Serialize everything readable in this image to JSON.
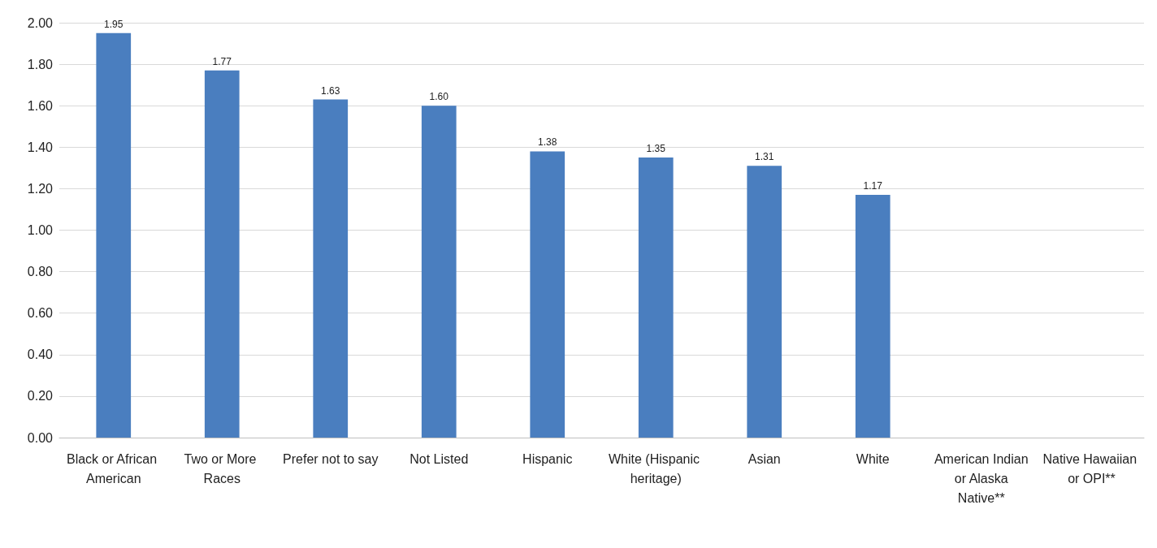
{
  "chart_data": {
    "type": "bar",
    "categories": [
      "Black or African American",
      "Two or More Races",
      "Prefer not to say",
      "Not Listed",
      "Hispanic",
      "White (Hispanic heritage)",
      "Asian",
      "White",
      "American Indian or Alaska Native**",
      "Native Hawaiian or OPI**"
    ],
    "values": [
      1.95,
      1.77,
      1.63,
      1.6,
      1.38,
      1.35,
      1.31,
      1.17,
      null,
      null
    ],
    "value_labels": [
      "1.95",
      "1.77",
      "1.63",
      "1.60",
      "1.38",
      "1.35",
      "1.31",
      "1.17",
      null,
      null
    ],
    "color": "#4a7ebf",
    "ylim": [
      0,
      2
    ],
    "yticks": [
      {
        "value": 0,
        "label": "0.00"
      },
      {
        "value": 0.2,
        "label": "0.20"
      },
      {
        "value": 0.4,
        "label": "0.40"
      },
      {
        "value": 0.6,
        "label": "0.60"
      },
      {
        "value": 0.8,
        "label": "0.80"
      },
      {
        "value": 1,
        "label": "1.00"
      },
      {
        "value": 1.2,
        "label": "1.20"
      },
      {
        "value": 1.4,
        "label": "1.40"
      },
      {
        "value": 1.6,
        "label": "1.60"
      },
      {
        "value": 1.8,
        "label": "1.80"
      },
      {
        "value": 2,
        "label": "2.00"
      }
    ],
    "grid": true
  }
}
